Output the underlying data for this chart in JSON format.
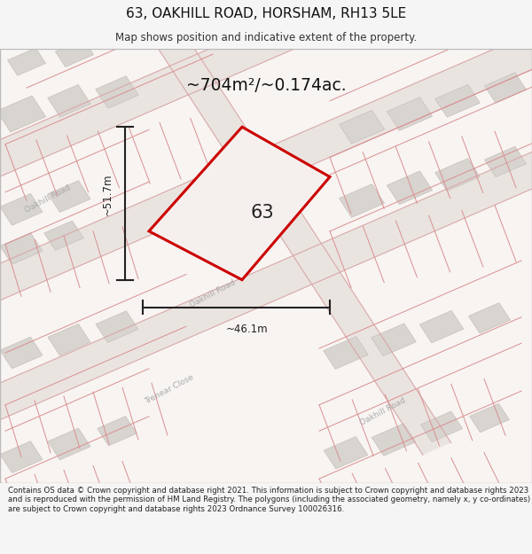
{
  "title": "63, OAKHILL ROAD, HORSHAM, RH13 5LE",
  "subtitle": "Map shows position and indicative extent of the property.",
  "area_label": "~704m²/~0.174ac.",
  "number_label": "63",
  "width_label": "~46.1m",
  "height_label": "~51.7m",
  "road_label_nw": "Oakhill Road",
  "road_label_mid": "Oakhill Road",
  "road_label_se": "Oakhill Road",
  "road_label_v": "Trenear Close",
  "footer": "Contains OS data © Crown copyright and database right 2021. This information is subject to Crown copyright and database rights 2023 and is reproduced with the permission of HM Land Registry. The polygons (including the associated geometry, namely x, y co-ordinates) are subject to Crown copyright and database rights 2023 Ordnance Survey 100026316.",
  "bg_color": "#f5f5f5",
  "map_bg": "#f8f4f2",
  "highlight_color": "#cc0000",
  "highlight_fill": "#f5f0ee",
  "building_color": "#d8d4d0",
  "building_edge": "#c8c0bc",
  "road_fill": "#eae4e0",
  "road_edge": "#d8a8a8",
  "lot_line_color": "#d89090",
  "measure_color": "#222222",
  "road_text_color": "#aaaaaa",
  "title_color": "#111111",
  "subtitle_color": "#333333",
  "footer_color": "#222222"
}
